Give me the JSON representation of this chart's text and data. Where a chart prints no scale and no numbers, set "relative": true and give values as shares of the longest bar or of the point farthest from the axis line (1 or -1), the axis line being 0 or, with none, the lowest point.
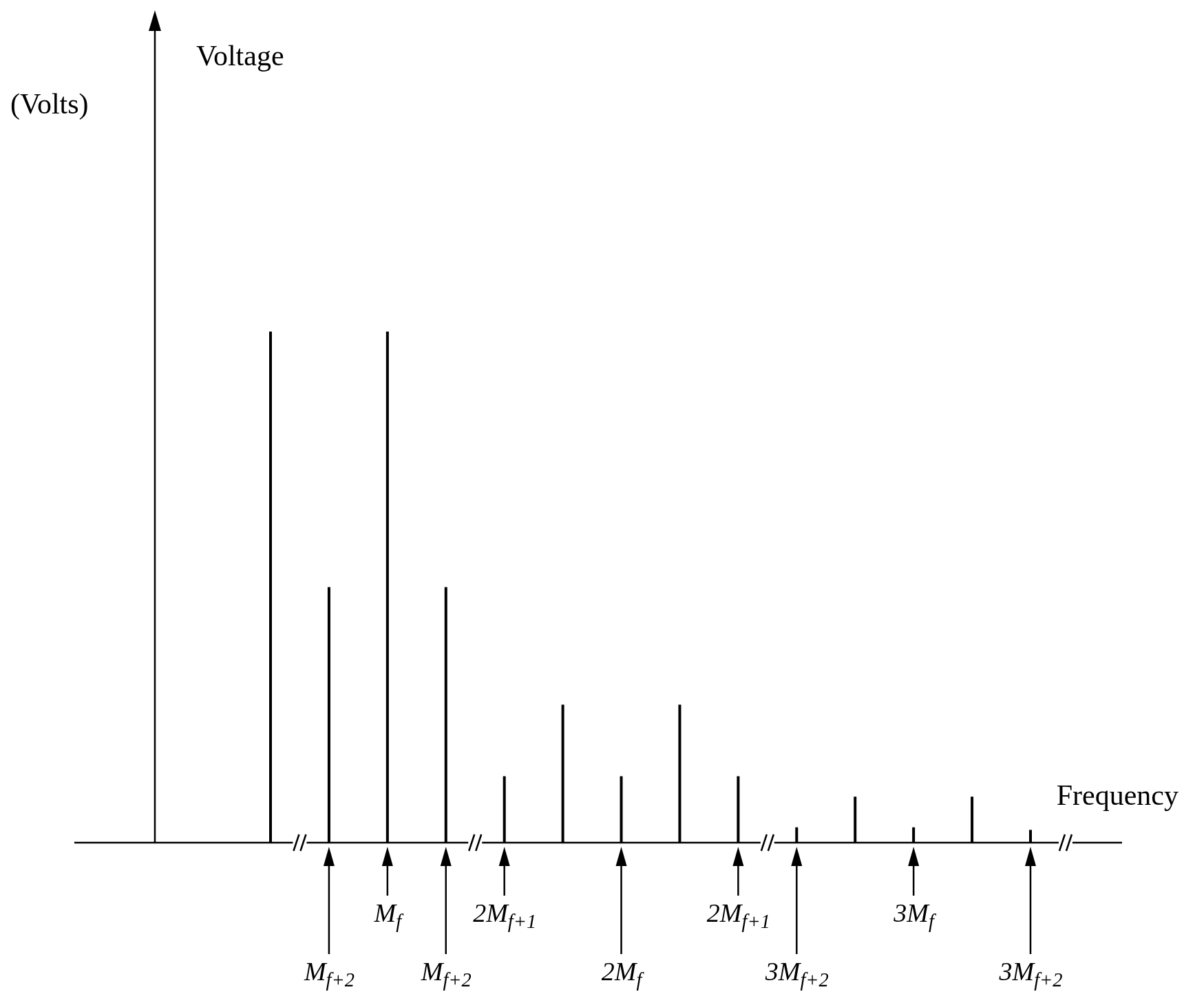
{
  "chart_data": {
    "type": "bar",
    "relative": true,
    "xlabel": "Frequency",
    "ylabel": "Voltage\n(Volts)",
    "categories": [
      null,
      "M$_{f+2}$",
      "M$_{f}$",
      "M$_{f+2}$",
      "2M$_{f+1}$",
      null,
      "2M$_{f}$",
      null,
      "2M$_{f+1}$",
      "3M$_{f+2}$",
      null,
      "3M$_{f}$",
      null,
      "3M$_{f+2}$"
    ],
    "values": [
      1,
      0.5,
      1,
      0.5,
      0.13,
      0.27,
      0.13,
      0.27,
      0.13,
      0.03,
      0.09,
      0.03,
      0.09,
      0.025
    ],
    "color": "#000000"
  }
}
